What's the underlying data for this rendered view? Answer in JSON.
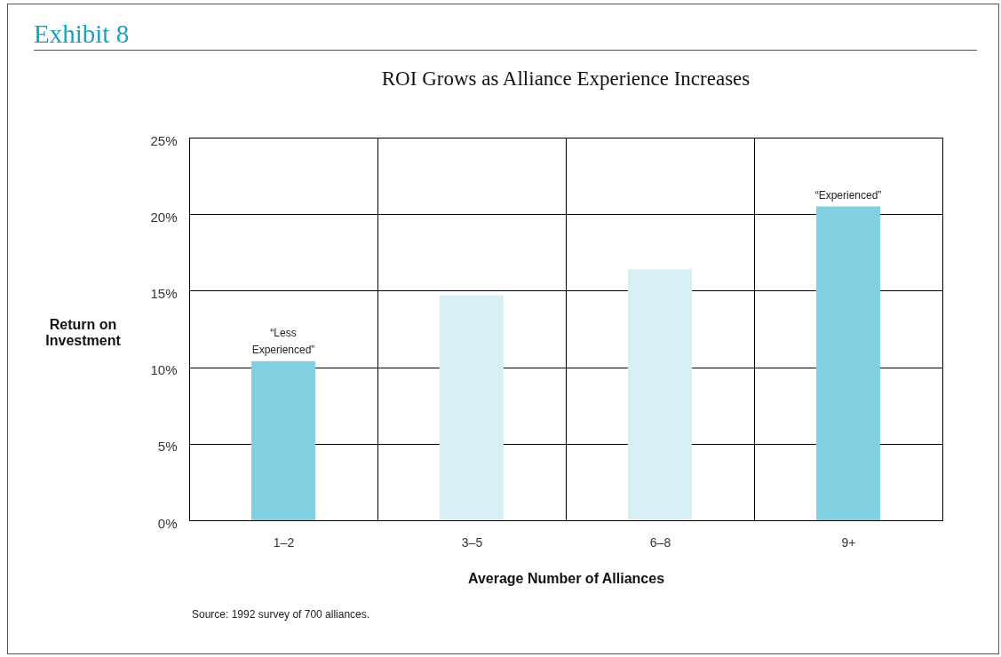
{
  "chart_data": {
    "type": "bar",
    "title": "Exhibit 8",
    "subtitle": "ROI Grows as Alliance Experience Increases",
    "xlabel": "Average Number of Alliances",
    "ylabel": "Return on Investment",
    "categories": [
      "1–2",
      "3–5",
      "6–8",
      "9+"
    ],
    "values": [
      10.4,
      14.7,
      16.4,
      20.5
    ],
    "colors": [
      "#82cfe2",
      "#d8eff5",
      "#d8eff5",
      "#82cfe2"
    ],
    "ylim": [
      0,
      25
    ],
    "yticks": [
      {
        "value": 0,
        "label": "0%"
      },
      {
        "value": 5,
        "label": "5%"
      },
      {
        "value": 10,
        "label": "10%"
      },
      {
        "value": 15,
        "label": "15%"
      },
      {
        "value": 20,
        "label": "20%"
      },
      {
        "value": 25,
        "label": "25%"
      }
    ],
    "grid": true,
    "legend": false,
    "annotations": [
      {
        "text": "“Less Experienced”",
        "x": "1–2",
        "y": 10.4
      },
      {
        "text": "“Experienced”",
        "x": "9+",
        "y": 20.5
      },
      "Source: 1992 survey of 700 alliances."
    ]
  }
}
